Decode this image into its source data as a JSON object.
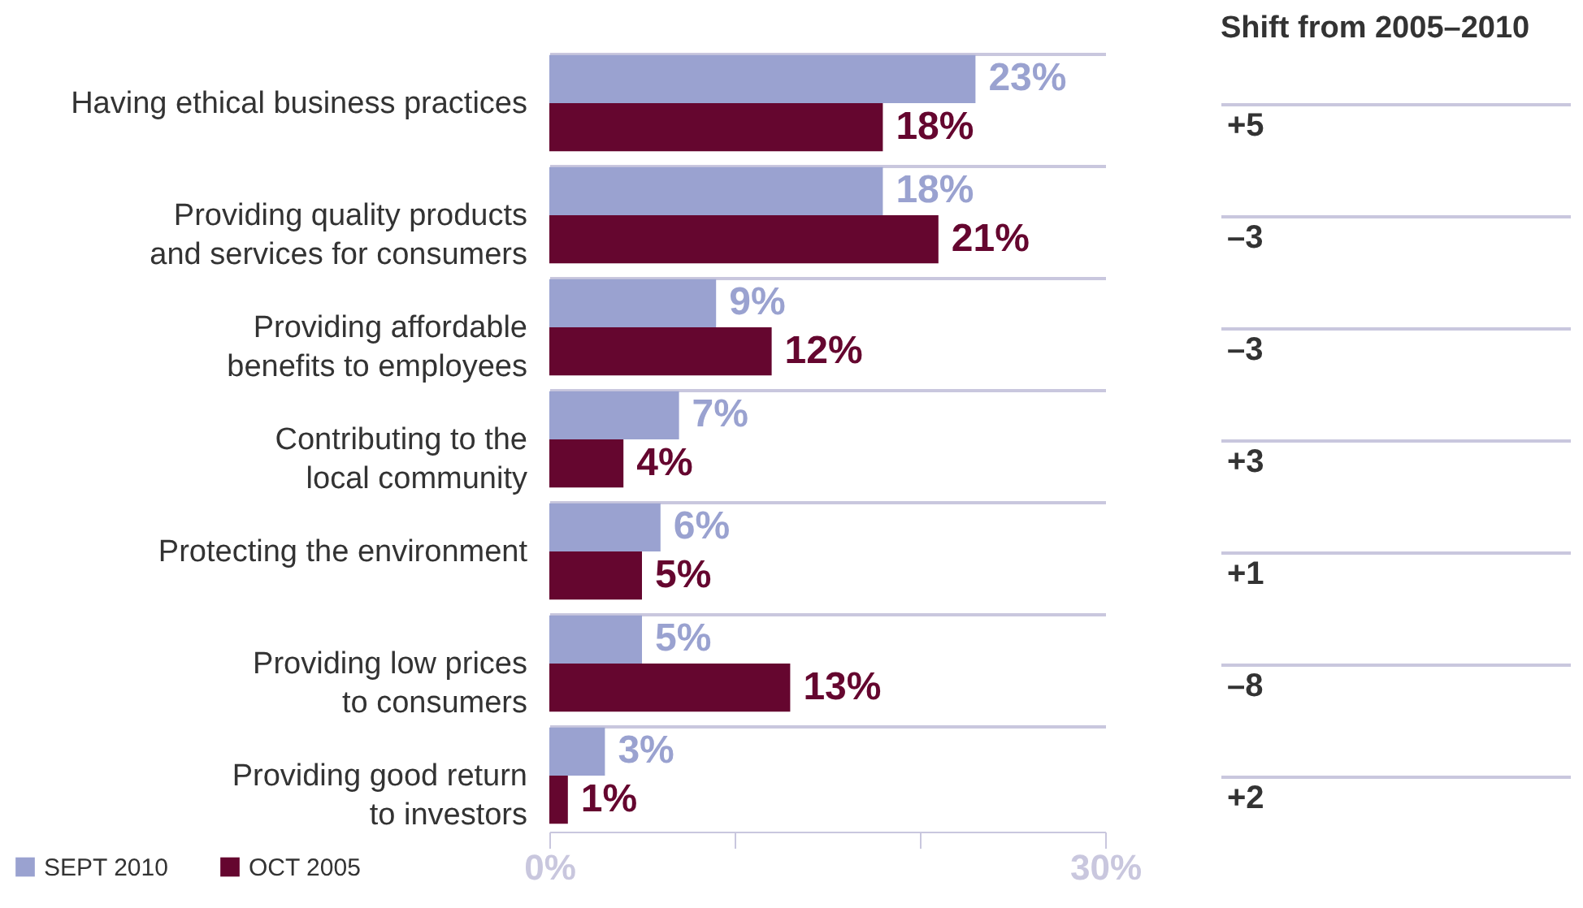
{
  "chart_data": {
    "type": "bar",
    "orientation": "horizontal",
    "categories": [
      "Having ethical business practices",
      "Providing quality products\nand services for consumers",
      "Providing affordable\nbenefits to employees",
      "Contributing to the\nlocal community",
      "Protecting the environment",
      "Providing low prices\nto consumers",
      "Providing good return\nto investors"
    ],
    "series": [
      {
        "name": "SEPT 2010",
        "color": "#9aa2d0",
        "values": [
          23,
          18,
          9,
          7,
          6,
          5,
          3
        ],
        "value_labels": [
          "23%",
          "18%",
          "9%",
          "7%",
          "6%",
          "5%",
          "3%"
        ]
      },
      {
        "name": "OCT 2005",
        "color": "#65062f",
        "values": [
          18,
          21,
          12,
          4,
          5,
          13,
          1
        ],
        "value_labels": [
          "18%",
          "21%",
          "12%",
          "4%",
          "5%",
          "13%",
          "1%"
        ]
      }
    ],
    "xlim": [
      0,
      30
    ],
    "xticks": [
      {
        "value": 0,
        "label": "0%"
      },
      {
        "value": 10,
        "label": null
      },
      {
        "value": 20,
        "label": null
      },
      {
        "value": 30,
        "label": "30%"
      }
    ],
    "grid": "y",
    "legend": "bottom left",
    "annotations": [
      "Shift from 2005–2010",
      "+5",
      "–3",
      "–3",
      "+3",
      "+1",
      "–8",
      "+2"
    ]
  }
}
